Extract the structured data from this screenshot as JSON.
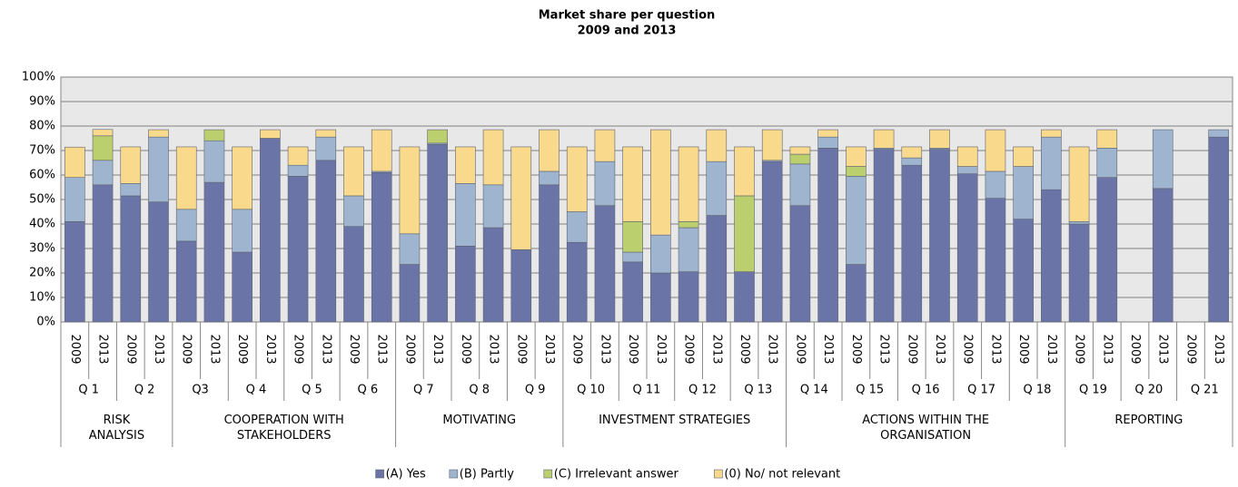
{
  "chart_data": {
    "type": "stacked_bar",
    "title": "Market share per question",
    "subtitle": "2009 and 2013",
    "categories": [
      "2009",
      "2013",
      "2009",
      "2013",
      "2009",
      "2013",
      "2009",
      "2013",
      "2009",
      "2013",
      "2009",
      "2013",
      "2009",
      "2013",
      "2009",
      "2013",
      "2009",
      "2013",
      "2009",
      "2013",
      "2009",
      "2013",
      "2009",
      "2013",
      "2009",
      "2013",
      "2009",
      "2013",
      "2009",
      "2013",
      "2009",
      "2013",
      "2009",
      "2013",
      "2009",
      "2013",
      "2009",
      "2013",
      "2009",
      "2013",
      "2009",
      "2013"
    ],
    "questions": [
      "Q 1",
      "Q 2",
      "Q3",
      "Q 4",
      "Q 5",
      "Q 6",
      "Q 7",
      "Q 8",
      "Q 9",
      "Q 10",
      "Q 11",
      "Q 12",
      "Q 13",
      "Q 14",
      "Q 15",
      "Q 16",
      "Q 17",
      "Q 18",
      "Q 19",
      "Q 20",
      "Q 21"
    ],
    "groups": [
      {
        "label": "RISK\nANALYSIS",
        "questions": 2
      },
      {
        "label": "COOPERATION WITH\nSTAKEHOLDERS",
        "questions": 4
      },
      {
        "label": "MOTIVATING",
        "questions": 3
      },
      {
        "label": "INVESTMENT STRATEGIES",
        "questions": 4
      },
      {
        "label": "ACTIONS WITHIN THE\nORGANISATION",
        "questions": 5
      },
      {
        "label": "REPORTING",
        "questions": 3
      }
    ],
    "series": [
      {
        "name": "(A) Yes",
        "color": "#6b74a6",
        "values": [
          41,
          56,
          51.5,
          49,
          33,
          57,
          28.5,
          75,
          59.5,
          66,
          39,
          61,
          23.5,
          72.5,
          31,
          38.5,
          29.5,
          56,
          32.5,
          47.5,
          24.5,
          20,
          20.5,
          43.5,
          20.5,
          65.5,
          47.5,
          71,
          23.5,
          70.5,
          64,
          70.5,
          60.5,
          50.5,
          42,
          54,
          40,
          59,
          0,
          54.5,
          0,
          75.5
        ]
      },
      {
        "name": "(B) Partly",
        "color": "#9fb5cf",
        "values": [
          18,
          10,
          5,
          26.5,
          13,
          17,
          17.5,
          0,
          4.5,
          9.5,
          12.5,
          0.5,
          12.5,
          0.5,
          25.5,
          17.5,
          0,
          5.5,
          12.5,
          18,
          4,
          15.5,
          18,
          22,
          0,
          0.5,
          17,
          4.5,
          36,
          0.5,
          3,
          0.5,
          3,
          11,
          21.5,
          21.5,
          1,
          12,
          0,
          24,
          0,
          3
        ]
      },
      {
        "name": "(C) Irrelevant answer",
        "color": "#bccf6f",
        "values": [
          0,
          10,
          0,
          0,
          0,
          4.5,
          0,
          0,
          0,
          0,
          0,
          0,
          0,
          5.5,
          0,
          0,
          0,
          0,
          0,
          0,
          12.5,
          0,
          2.5,
          0,
          31,
          0,
          4,
          0,
          4,
          0,
          0,
          0,
          0,
          0,
          0,
          0,
          0,
          0,
          0,
          0,
          0,
          0
        ]
      },
      {
        "name": "(0) No/ not relevant",
        "color": "#f9d98c",
        "values": [
          12.4,
          2.6,
          15,
          3,
          25.5,
          0,
          25.5,
          3.5,
          7.5,
          3,
          20,
          17,
          35.5,
          0,
          15,
          22.5,
          42,
          17,
          26.5,
          13,
          30.5,
          43,
          30.5,
          13,
          20,
          12.5,
          3,
          3,
          8,
          7.5,
          4.5,
          7.5,
          8,
          17,
          8,
          3,
          30.5,
          7.5,
          0,
          0,
          0,
          0
        ]
      }
    ],
    "ylim": [
      0,
      100
    ],
    "yticks": [
      {
        "value": 0,
        "label": "0%"
      },
      {
        "value": 10,
        "label": "10%"
      },
      {
        "value": 20,
        "label": "20%"
      },
      {
        "value": 30,
        "label": "30%"
      },
      {
        "value": 40,
        "label": "40%"
      },
      {
        "value": 50,
        "label": "50%"
      },
      {
        "value": 60,
        "label": "60%"
      },
      {
        "value": 70,
        "label": "70%"
      },
      {
        "value": 80,
        "label": "80%"
      },
      {
        "value": 90,
        "label": "90%"
      },
      {
        "value": 100,
        "label": "100%"
      }
    ],
    "grid": true
  }
}
